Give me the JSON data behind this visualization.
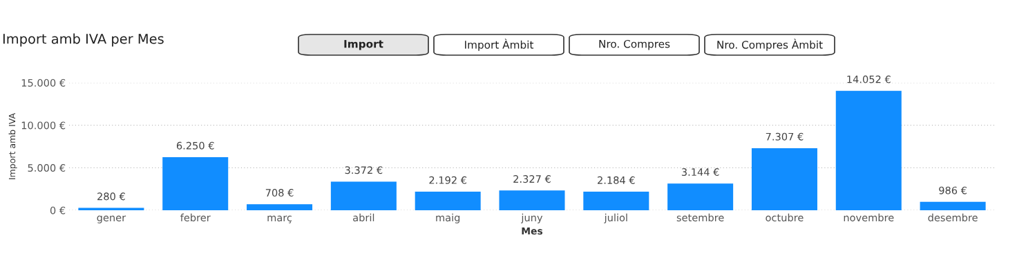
{
  "chart_data": {
    "type": "bar",
    "title": "Import amb IVA per Mes",
    "xlabel": "Mes",
    "ylabel": "Import amb IVA",
    "annotations": [
      "Import",
      "Import Àmbit",
      "Nro. Compres",
      "Nro. Compres Àmbit"
    ],
    "categories": [
      "gener",
      "febrer",
      "març",
      "abril",
      "maig",
      "juny",
      "juliol",
      "setembre",
      "octubre",
      "novembre",
      "desembre"
    ],
    "values": [
      280,
      6250,
      708,
      3372,
      2192,
      2327,
      2184,
      3144,
      7307,
      14052,
      986
    ],
    "value_labels": [
      "280 €",
      "6.250 €",
      "708 €",
      "3.372 €",
      "2.192 €",
      "2.327 €",
      "2.184 €",
      "3.144 €",
      "7.307 €",
      "14.052 €",
      "986 €"
    ],
    "color": "#118dff",
    "ylim": [
      0,
      15000
    ],
    "yticks": [
      {
        "value": 0,
        "label": "0 €"
      },
      {
        "value": 5000,
        "label": "5.000 €"
      },
      {
        "value": 10000,
        "label": "10.000 €"
      },
      {
        "value": 15000,
        "label": "15.000 €"
      }
    ],
    "grid": "y"
  }
}
